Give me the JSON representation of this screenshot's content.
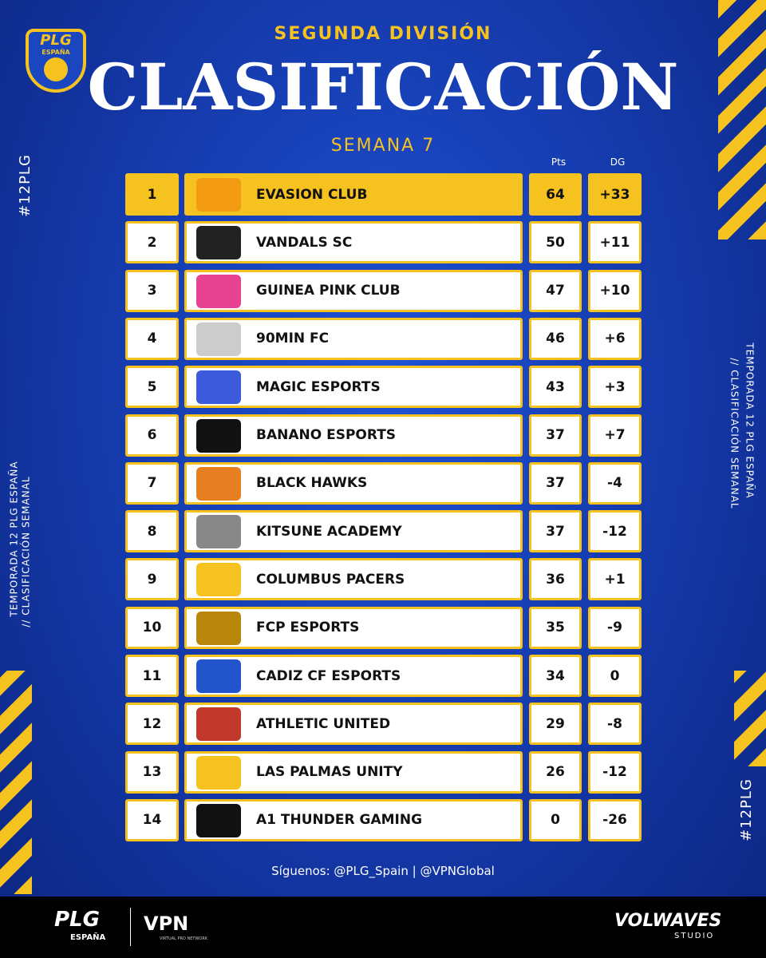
{
  "header": {
    "logo_title": "PLG",
    "logo_subtitle": "ESPAÑA",
    "division": "SEGUNDA DIVISIÓN",
    "title": "CLASIFICACIÓN",
    "week": "SEMANA 7"
  },
  "side": {
    "left_tag": "#12PLG",
    "left_line1": "TEMPORADA 12 PLG ESPAÑA",
    "left_line2": "// CLASIFICACIÓN SEMANAL",
    "right_line1": "TEMPORADA 12 PLG ESPAÑA",
    "right_line2": "// CLASIFICACIÓN SEMANAL",
    "right_tag": "#12PLG"
  },
  "table": {
    "columns": [
      "Pts",
      "DG"
    ],
    "rows": [
      [
        "1",
        "EVASION CLUB",
        "64",
        "+33"
      ],
      [
        "2",
        "VANDALS SC",
        "50",
        "+11"
      ],
      [
        "3",
        "GUINEA PINK CLUB",
        "47",
        "+10"
      ],
      [
        "4",
        "90MIN FC",
        "46",
        "+6"
      ],
      [
        "5",
        "MAGIC ESPORTS",
        "43",
        "+3"
      ],
      [
        "6",
        "BANANO ESPORTS",
        "37",
        "+7"
      ],
      [
        "7",
        "BLACK HAWKS",
        "37",
        "-4"
      ],
      [
        "8",
        "KITSUNE ACADEMY",
        "37",
        "-12"
      ],
      [
        "9",
        "COLUMBUS PACERS",
        "36",
        "+1"
      ],
      [
        "10",
        "FCP ESPORTS",
        "35",
        "-9"
      ],
      [
        "11",
        "CADIZ CF ESPORTS",
        "34",
        "0"
      ],
      [
        "12",
        "ATHLETIC UNITED",
        "29",
        "-8"
      ],
      [
        "13",
        "LAS PALMAS UNITY",
        "26",
        "-12"
      ],
      [
        "14",
        "A1 THUNDER GAMING",
        "0",
        "-26"
      ]
    ]
  },
  "footer": {
    "social": "Síguenos: @PLG_Spain | @VPNGlobal",
    "plg": "PLG",
    "plg_sub": "ESPAÑA",
    "vpn": "VPN",
    "vpn_sub": "VIRTUAL PRO NETWORK",
    "studio": "VOLWAVES",
    "studio_sub": "STUDIO"
  }
}
